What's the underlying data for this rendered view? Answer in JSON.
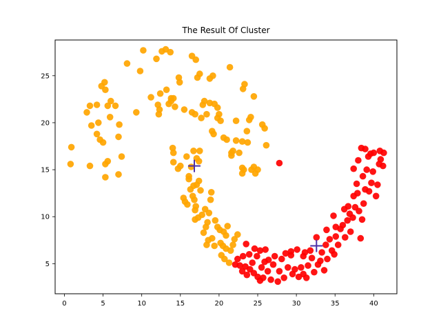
{
  "chart_data": {
    "type": "scatter",
    "title": "The Result Of Cluster",
    "xlabel": "",
    "ylabel": "",
    "xlim": [
      -1.2,
      43.0
    ],
    "ylim": [
      1.8,
      28.8
    ],
    "xticks": [
      0,
      5,
      10,
      15,
      20,
      25,
      30,
      35,
      40
    ],
    "yticks": [
      5,
      10,
      15,
      20,
      25
    ],
    "grid": false,
    "legend": "none",
    "clusters": [
      {
        "color": "#ffa500",
        "centroid": [
          16.8,
          15.4
        ],
        "points": [
          [
            0.9,
            17.4
          ],
          [
            0.8,
            15.6
          ],
          [
            3.3,
            15.4
          ],
          [
            2.9,
            21.1
          ],
          [
            3.3,
            21.8
          ],
          [
            3.5,
            19.7
          ],
          [
            4.2,
            21.9
          ],
          [
            4.4,
            20.0
          ],
          [
            4.2,
            18.8
          ],
          [
            4.6,
            18.2
          ],
          [
            4.8,
            23.9
          ],
          [
            5.2,
            24.3
          ],
          [
            5.3,
            23.5
          ],
          [
            5.0,
            17.9
          ],
          [
            5.3,
            15.6
          ],
          [
            5.6,
            15.9
          ],
          [
            5.3,
            14.2
          ],
          [
            5.6,
            21.8
          ],
          [
            6.0,
            22.3
          ],
          [
            6.6,
            21.8
          ],
          [
            5.9,
            20.6
          ],
          [
            7.1,
            19.8
          ],
          [
            7.0,
            18.5
          ],
          [
            7.4,
            16.4
          ],
          [
            7.0,
            14.5
          ],
          [
            8.1,
            26.3
          ],
          [
            9.3,
            21.1
          ],
          [
            9.8,
            25.5
          ],
          [
            10.2,
            27.7
          ],
          [
            11.2,
            22.7
          ],
          [
            11.9,
            26.8
          ],
          [
            12.1,
            21.9
          ],
          [
            12.3,
            21.4
          ],
          [
            12.2,
            20.9
          ],
          [
            12.4,
            23.1
          ],
          [
            12.6,
            27.6
          ],
          [
            13.2,
            23.5
          ],
          [
            13.5,
            22.0
          ],
          [
            13.8,
            22.3
          ],
          [
            13.1,
            27.8
          ],
          [
            13.7,
            27.5
          ],
          [
            13.8,
            22.6
          ],
          [
            14.1,
            22.6
          ],
          [
            14.3,
            21.7
          ],
          [
            14.0,
            17.3
          ],
          [
            14.1,
            16.8
          ],
          [
            14.1,
            15.8
          ],
          [
            14.8,
            24.8
          ],
          [
            14.9,
            24.3
          ],
          [
            14.7,
            15.1
          ],
          [
            15.0,
            15.4
          ],
          [
            15.5,
            21.4
          ],
          [
            15.8,
            16.4
          ],
          [
            16.1,
            14.3
          ],
          [
            16.5,
            21.1
          ],
          [
            16.9,
            20.9
          ],
          [
            16.5,
            27.1
          ],
          [
            16.7,
            17.0
          ],
          [
            17.0,
            26.7
          ],
          [
            17.2,
            24.8
          ],
          [
            17.5,
            25.2
          ],
          [
            17.1,
            16.2
          ],
          [
            17.5,
            17.0
          ],
          [
            17.4,
            15.9
          ],
          [
            17.9,
            21.9
          ],
          [
            17.7,
            20.5
          ],
          [
            18.1,
            22.3
          ],
          [
            18.4,
            20.9
          ],
          [
            18.8,
            22.1
          ],
          [
            18.8,
            24.7
          ],
          [
            19.2,
            25.0
          ],
          [
            19.4,
            22.0
          ],
          [
            19.1,
            19.1
          ],
          [
            19.3,
            18.8
          ],
          [
            19.8,
            21.6
          ],
          [
            20.0,
            20.9
          ],
          [
            19.8,
            20.5
          ],
          [
            20.2,
            20.2
          ],
          [
            20.6,
            18.4
          ],
          [
            21.0,
            18.2
          ],
          [
            21.4,
            25.9
          ],
          [
            21.8,
            17.0
          ],
          [
            21.6,
            16.8
          ],
          [
            21.6,
            16.5
          ],
          [
            22.2,
            20.2
          ],
          [
            22.2,
            18.1
          ],
          [
            22.6,
            16.8
          ],
          [
            23.0,
            18.0
          ],
          [
            23.0,
            15.2
          ],
          [
            23.2,
            15.0
          ],
          [
            23.0,
            14.6
          ],
          [
            23.7,
            17.9
          ],
          [
            23.3,
            24.1
          ],
          [
            23.1,
            23.6
          ],
          [
            23.9,
            20.3
          ],
          [
            23.6,
            19.1
          ],
          [
            24.1,
            20.6
          ],
          [
            24.5,
            22.8
          ],
          [
            24.2,
            15.0
          ],
          [
            24.5,
            15.3
          ],
          [
            25.0,
            15.0
          ],
          [
            24.7,
            14.6
          ],
          [
            25.6,
            19.8
          ],
          [
            25.9,
            19.4
          ],
          [
            26.1,
            17.6
          ],
          [
            15.4,
            12.0
          ],
          [
            15.6,
            11.6
          ],
          [
            16.3,
            12.9
          ],
          [
            16.6,
            12.2
          ],
          [
            16.9,
            10.7
          ],
          [
            16.8,
            11.8
          ],
          [
            17.1,
            13.4
          ],
          [
            17.4,
            13.8
          ],
          [
            17.6,
            12.8
          ],
          [
            17.0,
            11.1
          ],
          [
            16.9,
            9.7
          ],
          [
            17.3,
            9.9
          ],
          [
            17.8,
            10.2
          ],
          [
            18.0,
            8.3
          ],
          [
            18.3,
            8.9
          ],
          [
            18.5,
            9.4
          ],
          [
            18.2,
            10.8
          ],
          [
            18.7,
            10.4
          ],
          [
            18.9,
            11.8
          ],
          [
            19.0,
            12.6
          ],
          [
            18.6,
            7.5
          ],
          [
            19.1,
            7.7
          ],
          [
            19.4,
            6.9
          ],
          [
            19.8,
            8.9
          ],
          [
            20.1,
            8.6
          ],
          [
            20.6,
            8.4
          ],
          [
            20.9,
            8.0
          ],
          [
            20.2,
            7.2
          ],
          [
            20.5,
            6.9
          ],
          [
            20.9,
            6.6
          ],
          [
            20.3,
            5.9
          ],
          [
            20.7,
            5.5
          ],
          [
            21.3,
            5.1
          ],
          [
            21.5,
            6.4
          ],
          [
            21.8,
            7.0
          ],
          [
            22.0,
            7.6
          ],
          [
            22.4,
            8.1
          ],
          [
            21.1,
            9.0
          ],
          [
            19.5,
            9.6
          ],
          [
            18.4,
            7.0
          ],
          [
            16.4,
            15.3
          ],
          [
            16.1,
            14.0
          ],
          [
            16.7,
            13.3
          ],
          [
            15.9,
            11.3
          ]
        ]
      },
      {
        "color": "#ff0000",
        "centroid": [
          32.6,
          6.9
        ],
        "points": [
          [
            22.4,
            5.5
          ],
          [
            22.7,
            4.8
          ],
          [
            22.1,
            4.9
          ],
          [
            23.1,
            5.8
          ],
          [
            23.4,
            4.7
          ],
          [
            23.0,
            4.2
          ],
          [
            23.6,
            3.8
          ],
          [
            24.0,
            4.4
          ],
          [
            24.5,
            4.0
          ],
          [
            24.3,
            5.1
          ],
          [
            23.9,
            6.0
          ],
          [
            23.5,
            7.1
          ],
          [
            24.6,
            6.6
          ],
          [
            25.0,
            3.6
          ],
          [
            25.3,
            3.2
          ],
          [
            25.7,
            3.5
          ],
          [
            25.5,
            4.6
          ],
          [
            25.9,
            5.2
          ],
          [
            25.3,
            6.4
          ],
          [
            26.0,
            6.5
          ],
          [
            26.3,
            4.2
          ],
          [
            26.7,
            3.3
          ],
          [
            27.0,
            4.9
          ],
          [
            27.2,
            5.8
          ],
          [
            27.6,
            3.1
          ],
          [
            27.8,
            4.2
          ],
          [
            28.1,
            5.5
          ],
          [
            28.4,
            3.5
          ],
          [
            28.9,
            4.6
          ],
          [
            29.3,
            5.9
          ],
          [
            29.5,
            3.9
          ],
          [
            29.8,
            4.4
          ],
          [
            29.3,
            6.3
          ],
          [
            30.1,
            6.5
          ],
          [
            30.3,
            3.6
          ],
          [
            30.6,
            4.6
          ],
          [
            30.9,
            5.8
          ],
          [
            31.3,
            3.5
          ],
          [
            31.5,
            4.8
          ],
          [
            31.1,
            6.2
          ],
          [
            31.8,
            6.4
          ],
          [
            32.0,
            5.6
          ],
          [
            32.3,
            4.1
          ],
          [
            32.6,
            7.8
          ],
          [
            32.8,
            4.9
          ],
          [
            33.1,
            5.3
          ],
          [
            33.3,
            6.2
          ],
          [
            33.6,
            4.3
          ],
          [
            33.8,
            7.0
          ],
          [
            34.0,
            5.5
          ],
          [
            34.3,
            7.6
          ],
          [
            34.6,
            6.4
          ],
          [
            34.9,
            6.0
          ],
          [
            35.1,
            7.9
          ],
          [
            35.4,
            7.0
          ],
          [
            35.7,
            8.7
          ],
          [
            35.1,
            8.9
          ],
          [
            36.0,
            9.1
          ],
          [
            36.3,
            7.8
          ],
          [
            36.6,
            9.6
          ],
          [
            36.9,
            10.3
          ],
          [
            36.7,
            11.1
          ],
          [
            37.0,
            8.4
          ],
          [
            37.3,
            9.9
          ],
          [
            37.6,
            11.0
          ],
          [
            37.4,
            12.2
          ],
          [
            37.9,
            12.5
          ],
          [
            37.8,
            13.5
          ],
          [
            38.1,
            10.6
          ],
          [
            38.5,
            9.7
          ],
          [
            38.3,
            7.7
          ],
          [
            38.7,
            11.4
          ],
          [
            38.9,
            12.9
          ],
          [
            38.6,
            14.3
          ],
          [
            39.1,
            15.0
          ],
          [
            39.3,
            16.4
          ],
          [
            38.9,
            17.2
          ],
          [
            39.4,
            12.7
          ],
          [
            39.7,
            13.6
          ],
          [
            39.9,
            14.8
          ],
          [
            40.0,
            16.8
          ],
          [
            40.3,
            12.2
          ],
          [
            40.5,
            13.4
          ],
          [
            40.7,
            15.6
          ],
          [
            40.9,
            16.1
          ],
          [
            41.2,
            15.4
          ],
          [
            41.3,
            16.8
          ],
          [
            40.8,
            17.0
          ],
          [
            39.6,
            16.7
          ],
          [
            38.4,
            17.3
          ],
          [
            37.4,
            15.1
          ],
          [
            38.0,
            16.0
          ],
          [
            36.2,
            10.8
          ],
          [
            34.8,
            10.1
          ],
          [
            33.9,
            8.6
          ],
          [
            27.8,
            15.7
          ],
          [
            26.4,
            5.4
          ],
          [
            28.6,
            6.1
          ],
          [
            30.9,
            3.9
          ],
          [
            24.9,
            5.8
          ]
        ]
      }
    ]
  }
}
